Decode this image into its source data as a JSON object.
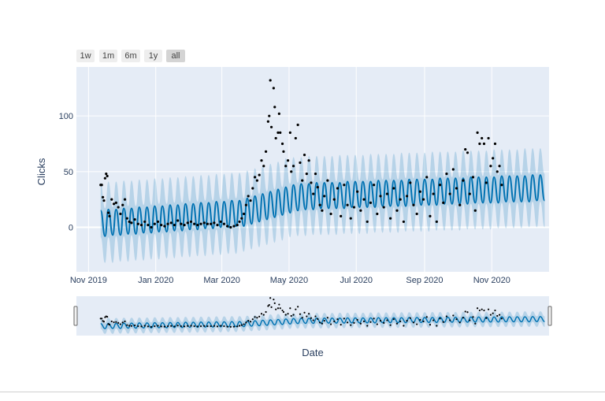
{
  "range_buttons": [
    {
      "label": "1w",
      "active": false
    },
    {
      "label": "1m",
      "active": false
    },
    {
      "label": "6m",
      "active": false
    },
    {
      "label": "1y",
      "active": false
    },
    {
      "label": "all",
      "active": true
    }
  ],
  "colors": {
    "plot_bg": "#e5ecf6",
    "forecast_line": "#0072B2",
    "interval_fill": "rgba(0,114,178,0.2)",
    "actual_points": "#000000",
    "grid": "#ffffff"
  },
  "chart_data": {
    "type": "line",
    "title": "",
    "xlabel": "Date",
    "ylabel": "Clicks",
    "xlim": [
      "2019-10-21",
      "2020-12-23"
    ],
    "ylim": [
      -40,
      144
    ],
    "grid": true,
    "rangeslider": true,
    "x_ticks": [
      {
        "date": "2019-11-01",
        "label": "Nov 2019"
      },
      {
        "date": "2020-01-01",
        "label": "Jan 2020"
      },
      {
        "date": "2020-03-01",
        "label": "Mar 2020"
      },
      {
        "date": "2020-05-01",
        "label": "May 2020"
      },
      {
        "date": "2020-07-01",
        "label": "Jul 2020"
      },
      {
        "date": "2020-09-01",
        "label": "Sep 2020"
      },
      {
        "date": "2020-11-01",
        "label": "Nov 2020"
      }
    ],
    "y_ticks": [
      0,
      50,
      100
    ],
    "forecast": {
      "x": [
        "2019-11-12",
        "2019-11-16",
        "2019-11-19",
        "2019-11-23",
        "2019-11-26",
        "2019-11-30",
        "2019-12-03",
        "2019-12-07",
        "2019-12-10",
        "2019-12-14",
        "2019-12-17",
        "2019-12-21",
        "2019-12-24",
        "2019-12-28",
        "2019-12-31",
        "2020-01-04",
        "2020-01-07",
        "2020-01-11",
        "2020-01-14",
        "2020-01-18",
        "2020-01-21",
        "2020-01-25",
        "2020-01-28",
        "2020-02-01",
        "2020-02-04",
        "2020-02-08",
        "2020-02-11",
        "2020-02-15",
        "2020-02-18",
        "2020-02-22",
        "2020-02-25",
        "2020-02-29",
        "2020-03-03",
        "2020-03-07",
        "2020-03-10",
        "2020-03-14",
        "2020-03-17",
        "2020-03-21",
        "2020-03-24",
        "2020-03-28",
        "2020-03-31",
        "2020-04-04",
        "2020-04-07",
        "2020-04-11",
        "2020-04-14",
        "2020-04-18",
        "2020-04-21",
        "2020-04-25",
        "2020-04-28",
        "2020-05-02",
        "2020-05-05",
        "2020-05-09",
        "2020-05-12",
        "2020-05-16",
        "2020-05-19",
        "2020-05-23",
        "2020-05-26",
        "2020-05-30",
        "2020-06-02",
        "2020-06-06",
        "2020-06-09",
        "2020-06-13",
        "2020-06-16",
        "2020-06-20",
        "2020-06-23",
        "2020-06-27",
        "2020-06-30",
        "2020-07-04",
        "2020-07-07",
        "2020-07-11",
        "2020-07-14",
        "2020-07-18",
        "2020-07-21",
        "2020-07-25",
        "2020-07-28",
        "2020-08-01",
        "2020-08-04",
        "2020-08-08",
        "2020-08-11",
        "2020-08-15",
        "2020-08-18",
        "2020-08-22",
        "2020-08-25",
        "2020-08-29",
        "2020-09-01",
        "2020-09-05",
        "2020-09-08",
        "2020-09-12",
        "2020-09-15",
        "2020-09-19",
        "2020-09-22",
        "2020-09-26",
        "2020-09-29",
        "2020-10-03",
        "2020-10-06",
        "2020-10-10",
        "2020-10-13",
        "2020-10-17",
        "2020-10-20",
        "2020-10-24",
        "2020-10-27",
        "2020-10-31",
        "2020-11-03",
        "2020-11-07",
        "2020-11-10",
        "2020-11-14",
        "2020-11-17",
        "2020-11-21",
        "2020-11-24",
        "2020-11-28",
        "2020-12-01",
        "2020-12-05",
        "2020-12-08",
        "2020-12-12",
        "2020-12-15",
        "2020-12-19"
      ],
      "yhat": [
        15,
        -8,
        16,
        -7,
        16,
        -7,
        17,
        -6,
        17,
        -6,
        18,
        -5,
        18,
        -5,
        19,
        -4,
        19,
        -4,
        20,
        -3,
        20,
        -3,
        21,
        -2,
        21,
        -2,
        22,
        -1,
        22,
        -1,
        23,
        0,
        23,
        0,
        24,
        1,
        24,
        1,
        26,
        3,
        28,
        5,
        30,
        7,
        32,
        9,
        34,
        11,
        36,
        13,
        38,
        15,
        39,
        16,
        39,
        16,
        40,
        17,
        40,
        17,
        40,
        17,
        40,
        17,
        41,
        18,
        41,
        18,
        41,
        18,
        41,
        18,
        42,
        19,
        42,
        19,
        42,
        19,
        42,
        19,
        43,
        20,
        43,
        20,
        43,
        20,
        43,
        20,
        44,
        21,
        44,
        21,
        44,
        21,
        44,
        21,
        45,
        22,
        45,
        22,
        45,
        22,
        45,
        22,
        46,
        23,
        46,
        23,
        46,
        23,
        46,
        23,
        47,
        24,
        47,
        24,
        47,
        24
      ],
      "yhat_lower": [
        -10,
        -33,
        -9,
        -32,
        -9,
        -32,
        -8,
        -31,
        -8,
        -31,
        -7,
        -30,
        -7,
        -30,
        -6,
        -29,
        -6,
        -29,
        -5,
        -28,
        -5,
        -28,
        -4,
        -27,
        -4,
        -27,
        -3,
        -26,
        -3,
        -26,
        -2,
        -25,
        -2,
        -25,
        -1,
        -24,
        -1,
        -24,
        1,
        -22,
        3,
        -20,
        5,
        -18,
        7,
        -16,
        9,
        -14,
        11,
        -12,
        14,
        -9,
        15,
        -8,
        15,
        -8,
        16,
        -7,
        16,
        -7,
        16,
        -7,
        16,
        -7,
        17,
        -6,
        17,
        -6,
        17,
        -6,
        17,
        -6,
        18,
        -5,
        18,
        -5,
        18,
        -5,
        18,
        -5,
        19,
        -4,
        19,
        -4,
        19,
        -4,
        19,
        -4,
        20,
        -3,
        20,
        -3,
        20,
        -3,
        20,
        -3,
        21,
        -2,
        21,
        -2,
        21,
        -2,
        21,
        -2,
        22,
        -1,
        22,
        -1,
        22,
        -1,
        22,
        -1,
        23,
        0,
        23,
        0,
        23,
        0
      ],
      "yhat_upper": [
        40,
        17,
        41,
        18,
        41,
        18,
        42,
        19,
        42,
        19,
        43,
        20,
        43,
        20,
        44,
        21,
        44,
        21,
        45,
        22,
        45,
        22,
        46,
        23,
        46,
        23,
        47,
        24,
        47,
        24,
        48,
        25,
        48,
        25,
        49,
        26,
        49,
        26,
        51,
        28,
        53,
        30,
        55,
        32,
        57,
        34,
        59,
        36,
        62,
        39,
        63,
        40,
        63,
        40,
        64,
        41,
        64,
        41,
        64,
        41,
        64,
        41,
        65,
        42,
        65,
        42,
        65,
        42,
        65,
        42,
        66,
        43,
        66,
        43,
        66,
        43,
        66,
        43,
        67,
        44,
        67,
        44,
        67,
        44,
        67,
        44,
        68,
        45,
        68,
        45,
        68,
        45,
        68,
        45,
        69,
        46,
        69,
        46,
        69,
        46,
        69,
        46,
        70,
        47,
        70,
        47,
        70,
        47,
        70,
        47,
        71,
        48,
        71,
        48,
        71,
        48
      ]
    },
    "actual": {
      "x": [
        "2019-11-12",
        "2019-11-13",
        "2019-11-14",
        "2019-11-15",
        "2019-11-16",
        "2019-11-17",
        "2019-11-18",
        "2019-11-19",
        "2019-11-20",
        "2019-11-22",
        "2019-11-24",
        "2019-11-26",
        "2019-11-28",
        "2019-11-30",
        "2019-12-02",
        "2019-12-04",
        "2019-12-06",
        "2019-12-08",
        "2019-12-10",
        "2019-12-13",
        "2019-12-16",
        "2019-12-19",
        "2019-12-22",
        "2019-12-25",
        "2019-12-28",
        "2019-12-31",
        "2020-01-03",
        "2020-01-06",
        "2020-01-09",
        "2020-01-12",
        "2020-01-15",
        "2020-01-18",
        "2020-01-21",
        "2020-01-24",
        "2020-01-27",
        "2020-01-30",
        "2020-02-02",
        "2020-02-05",
        "2020-02-08",
        "2020-02-11",
        "2020-02-14",
        "2020-02-17",
        "2020-02-20",
        "2020-02-23",
        "2020-02-26",
        "2020-02-29",
        "2020-03-03",
        "2020-03-06",
        "2020-03-09",
        "2020-03-12",
        "2020-03-15",
        "2020-03-17",
        "2020-03-19",
        "2020-03-21",
        "2020-03-23",
        "2020-03-25",
        "2020-03-27",
        "2020-03-29",
        "2020-03-31",
        "2020-04-02",
        "2020-04-04",
        "2020-04-06",
        "2020-04-08",
        "2020-04-10",
        "2020-04-12",
        "2020-04-13",
        "2020-04-14",
        "2020-04-15",
        "2020-04-17",
        "2020-04-18",
        "2020-04-19",
        "2020-04-21",
        "2020-04-22",
        "2020-04-23",
        "2020-04-25",
        "2020-04-26",
        "2020-04-28",
        "2020-04-30",
        "2020-05-02",
        "2020-05-03",
        "2020-05-05",
        "2020-05-07",
        "2020-05-09",
        "2020-05-11",
        "2020-05-13",
        "2020-05-15",
        "2020-05-17",
        "2020-05-19",
        "2020-05-21",
        "2020-05-23",
        "2020-05-25",
        "2020-05-27",
        "2020-05-29",
        "2020-05-31",
        "2020-06-02",
        "2020-06-05",
        "2020-06-08",
        "2020-06-11",
        "2020-06-14",
        "2020-06-17",
        "2020-06-20",
        "2020-06-23",
        "2020-06-26",
        "2020-06-29",
        "2020-07-02",
        "2020-07-05",
        "2020-07-08",
        "2020-07-11",
        "2020-07-14",
        "2020-07-17",
        "2020-07-20",
        "2020-07-23",
        "2020-07-26",
        "2020-07-29",
        "2020-08-01",
        "2020-08-04",
        "2020-08-07",
        "2020-08-10",
        "2020-08-13",
        "2020-08-16",
        "2020-08-19",
        "2020-08-22",
        "2020-08-25",
        "2020-08-28",
        "2020-08-31",
        "2020-09-03",
        "2020-09-06",
        "2020-09-09",
        "2020-09-12",
        "2020-09-15",
        "2020-09-18",
        "2020-09-21",
        "2020-09-24",
        "2020-09-27",
        "2020-09-30",
        "2020-10-03",
        "2020-10-06",
        "2020-10-08",
        "2020-10-10",
        "2020-10-12",
        "2020-10-15",
        "2020-10-17",
        "2020-10-19",
        "2020-10-21",
        "2020-10-23",
        "2020-10-25",
        "2020-10-27",
        "2020-10-29",
        "2020-10-31",
        "2020-11-02",
        "2020-11-04",
        "2020-11-06",
        "2020-11-08",
        "2020-11-10"
      ],
      "y": [
        38,
        38,
        27,
        24,
        44,
        48,
        46,
        13,
        10,
        25,
        21,
        22,
        18,
        12,
        20,
        25,
        8,
        5,
        4,
        7,
        3,
        2,
        5,
        2,
        0,
        3,
        5,
        2,
        1,
        3,
        4,
        2,
        6,
        3,
        2,
        4,
        5,
        3,
        2,
        3,
        4,
        3,
        3,
        4,
        2,
        5,
        3,
        1,
        0,
        1,
        2,
        5,
        8,
        12,
        20,
        28,
        24,
        35,
        45,
        42,
        47,
        60,
        55,
        68,
        95,
        100,
        132,
        90,
        125,
        108,
        80,
        85,
        102,
        85,
        75,
        68,
        55,
        60,
        85,
        50,
        55,
        80,
        92,
        58,
        42,
        65,
        48,
        60,
        40,
        30,
        48,
        36,
        20,
        15,
        28,
        42,
        12,
        25,
        35,
        10,
        38,
        20,
        8,
        18,
        32,
        15,
        25,
        5,
        22,
        38,
        12,
        28,
        18,
        30,
        8,
        35,
        15,
        25,
        5,
        28,
        40,
        20,
        12,
        32,
        25,
        45,
        10,
        30,
        5,
        38,
        22,
        48,
        30,
        52,
        35,
        20,
        42,
        70,
        67,
        30,
        45,
        15,
        85,
        75,
        80,
        75,
        40,
        80,
        55,
        62,
        75,
        50,
        55,
        38
      ]
    }
  }
}
